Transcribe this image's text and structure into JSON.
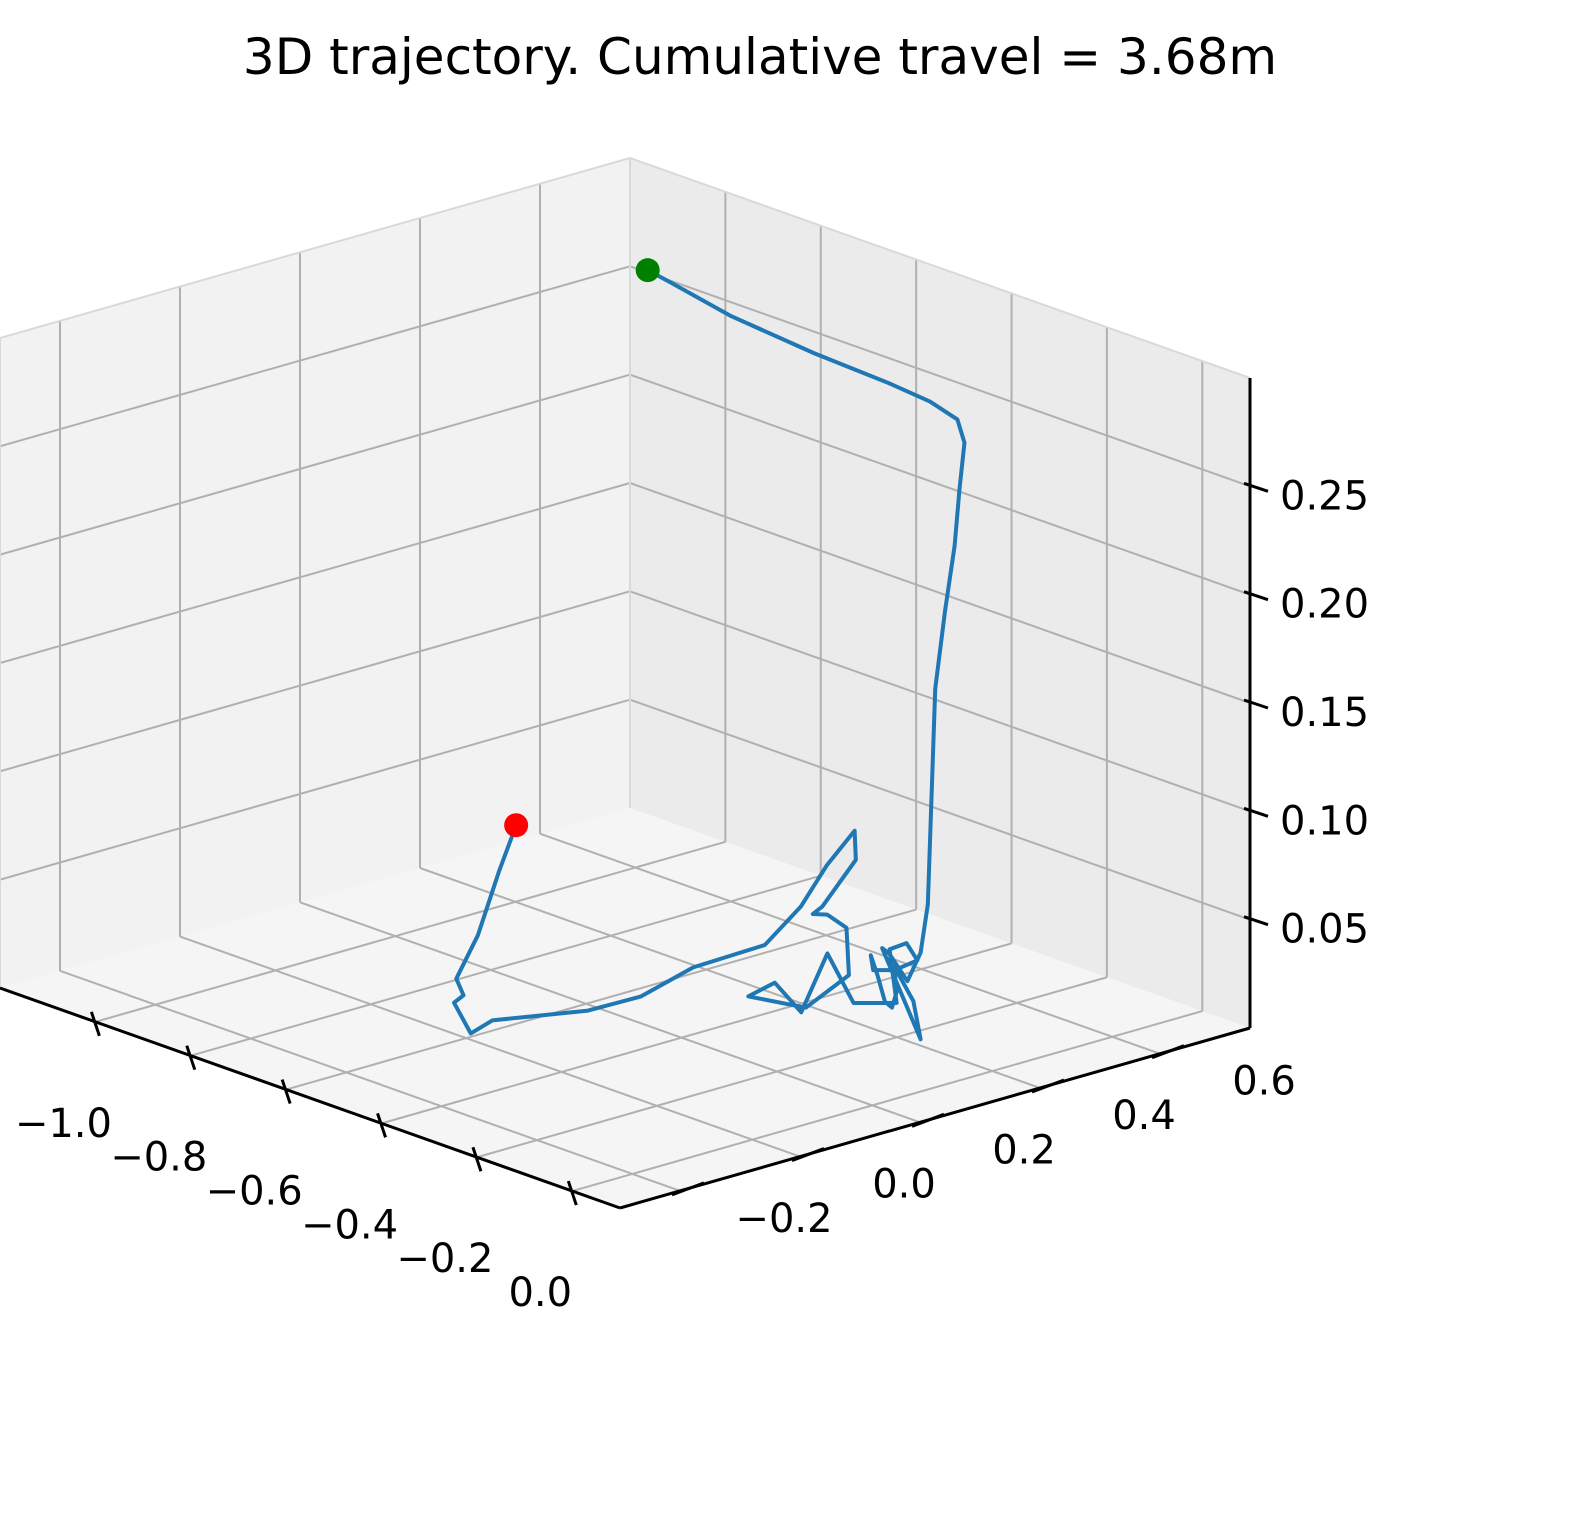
{
  "chart_data": {
    "type": "line",
    "projection": "3d",
    "title": "3D trajectory. Cumulative travel = 3.68m",
    "xlabel": "",
    "ylabel": "",
    "zlabel": "",
    "xlim": [
      -1.2,
      0.1
    ],
    "ylim": [
      -0.3,
      0.75
    ],
    "zlim": [
      0.0,
      0.3
    ],
    "grid": true,
    "x_ticks": [
      {
        "value": -1.0,
        "label": "−1.0"
      },
      {
        "value": -0.8,
        "label": "−0.8"
      },
      {
        "value": -0.6,
        "label": "−0.6"
      },
      {
        "value": -0.4,
        "label": "−0.4"
      },
      {
        "value": -0.2,
        "label": "−0.2"
      },
      {
        "value": 0.0,
        "label": "0.0"
      }
    ],
    "y_ticks": [
      {
        "value": -0.2,
        "label": "−0.2"
      },
      {
        "value": 0.0,
        "label": "0.0"
      },
      {
        "value": 0.2,
        "label": "0.2"
      },
      {
        "value": 0.4,
        "label": "0.4"
      },
      {
        "value": 0.6,
        "label": "0.6"
      }
    ],
    "z_ticks": [
      {
        "value": 0.05,
        "label": "0.05"
      },
      {
        "value": 0.1,
        "label": "0.10"
      },
      {
        "value": 0.15,
        "label": "0.15"
      },
      {
        "value": 0.2,
        "label": "0.20"
      },
      {
        "value": 0.25,
        "label": "0.25"
      }
    ],
    "series": [
      {
        "color": "#1f77b4",
        "x": [
          -1.1,
          -1.05,
          -0.9,
          -0.7,
          -0.52,
          -0.42,
          -0.35,
          -0.31,
          -0.27,
          -0.23,
          -0.2,
          -0.17,
          -0.15,
          -0.13,
          -0.11,
          -0.1,
          -0.09,
          -0.09,
          -0.08,
          -0.1,
          -0.09,
          -0.08,
          -0.1,
          -0.16,
          -0.2,
          -0.24,
          -0.28,
          -0.3,
          -0.28,
          -0.22,
          -0.18,
          -0.14,
          -0.1,
          -0.14,
          -0.22,
          -0.3,
          -0.28,
          -0.26,
          -0.24,
          -0.2,
          -0.18,
          -0.17,
          -0.15,
          -0.13,
          -0.12,
          -0.11,
          -0.1,
          -0.12,
          -0.15,
          -0.2,
          -0.3,
          -0.36,
          -0.42,
          -0.48,
          -0.52,
          -0.54,
          -0.55,
          -0.53,
          -0.52,
          -0.5,
          -0.48,
          -0.47
        ],
        "y": [
          0.7,
          0.7,
          0.68,
          0.66,
          0.64,
          0.63,
          0.62,
          0.6,
          0.56,
          0.52,
          0.48,
          0.44,
          0.42,
          0.4,
          0.38,
          0.36,
          0.33,
          0.3,
          0.28,
          0.36,
          0.34,
          0.3,
          0.32,
          0.36,
          0.38,
          0.4,
          0.42,
          0.44,
          0.46,
          0.45,
          0.4,
          0.34,
          0.32,
          0.28,
          0.3,
          0.32,
          0.26,
          0.2,
          0.28,
          0.32,
          0.3,
          0.26,
          0.22,
          0.22,
          0.24,
          0.26,
          0.25,
          0.22,
          0.2,
          0.18,
          0.14,
          0.1,
          0.06,
          0.02,
          -0.02,
          -0.04,
          -0.06,
          -0.06,
          -0.08,
          -0.06,
          -0.04,
          -0.02
        ],
        "z": [
          0.26,
          0.258,
          0.256,
          0.256,
          0.258,
          0.258,
          0.256,
          0.25,
          0.235,
          0.215,
          0.19,
          0.16,
          0.13,
          0.1,
          0.07,
          0.05,
          0.04,
          0.055,
          0.06,
          0.01,
          0.03,
          0.05,
          0.035,
          0.02,
          0.018,
          0.025,
          0.03,
          0.02,
          0.02,
          0.03,
          0.045,
          0.05,
          0.03,
          0.03,
          0.045,
          0.01,
          0.03,
          0.03,
          0.02,
          0.035,
          0.06,
          0.07,
          0.075,
          0.08,
          0.09,
          0.1,
          0.115,
          0.1,
          0.08,
          0.06,
          0.045,
          0.03,
          0.022,
          0.018,
          0.016,
          0.01,
          0.025,
          0.03,
          0.04,
          0.06,
          0.09,
          0.11
        ]
      }
    ],
    "markers": [
      {
        "role": "start",
        "color": "#008000",
        "x": -1.1,
        "y": 0.7,
        "z": 0.26
      },
      {
        "role": "end",
        "color": "#ff0000",
        "x": -0.47,
        "y": -0.02,
        "z": 0.11
      }
    ],
    "pane_colors": {
      "left": "#f2f2f2",
      "back": "#ebebeb",
      "floor": "#f5f5f5"
    },
    "grid_color": "#b0b0b0",
    "axis_color": "#000000"
  }
}
